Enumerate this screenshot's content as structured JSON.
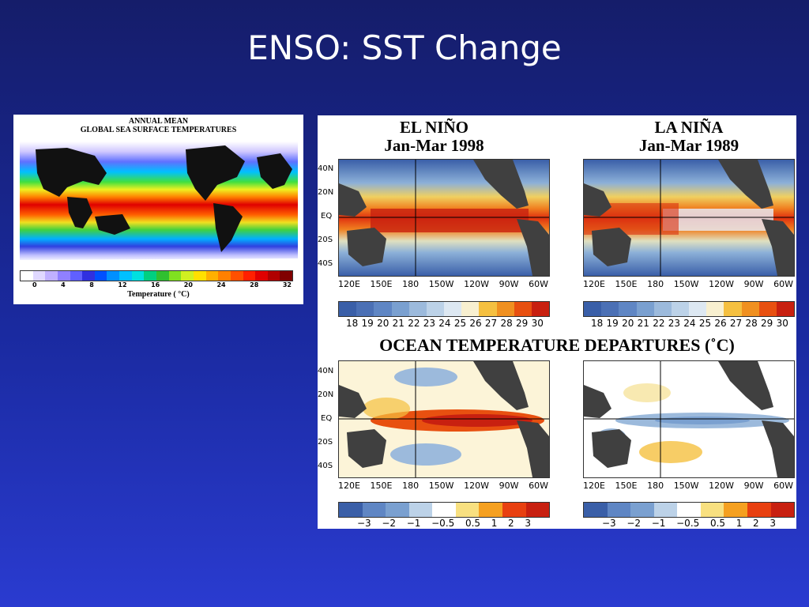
{
  "slide": {
    "title": "ENSO: SST Change"
  },
  "left_map": {
    "title_line1": "ANNUAL MEAN",
    "title_line2": "GLOBAL SEA SURFACE TEMPERATURES",
    "colorbar_ticks": [
      "0",
      "4",
      "8",
      "12",
      "16",
      "20",
      "24",
      "28",
      "32"
    ],
    "colorbar_label": "Temperature ( °C)"
  },
  "right_figure": {
    "el_nino": {
      "name": "EL NIÑO",
      "period": "Jan-Mar 1998"
    },
    "la_nina": {
      "name": "LA NIÑA",
      "period": "Jan-Mar 1989"
    },
    "departures_title": "OCEAN TEMPERATURE DEPARTURES (˚C)",
    "lat_labels": [
      "40N",
      "20N",
      "EQ",
      "20S",
      "40S"
    ],
    "lon_labels": [
      "120E",
      "150E",
      "180",
      "150W",
      "120W",
      "90W",
      "60W"
    ],
    "sst_scale": [
      "18",
      "19",
      "20",
      "21",
      "22",
      "23",
      "24",
      "25",
      "26",
      "27",
      "28",
      "29",
      "30"
    ],
    "anomaly_scale": [
      "−3",
      "−2",
      "−1",
      "−0.5",
      "0.5",
      "1",
      "2",
      "3"
    ]
  },
  "colors": {
    "background_top": "#151d6a",
    "background_bottom": "#2a3bd0",
    "land": "#404040"
  }
}
